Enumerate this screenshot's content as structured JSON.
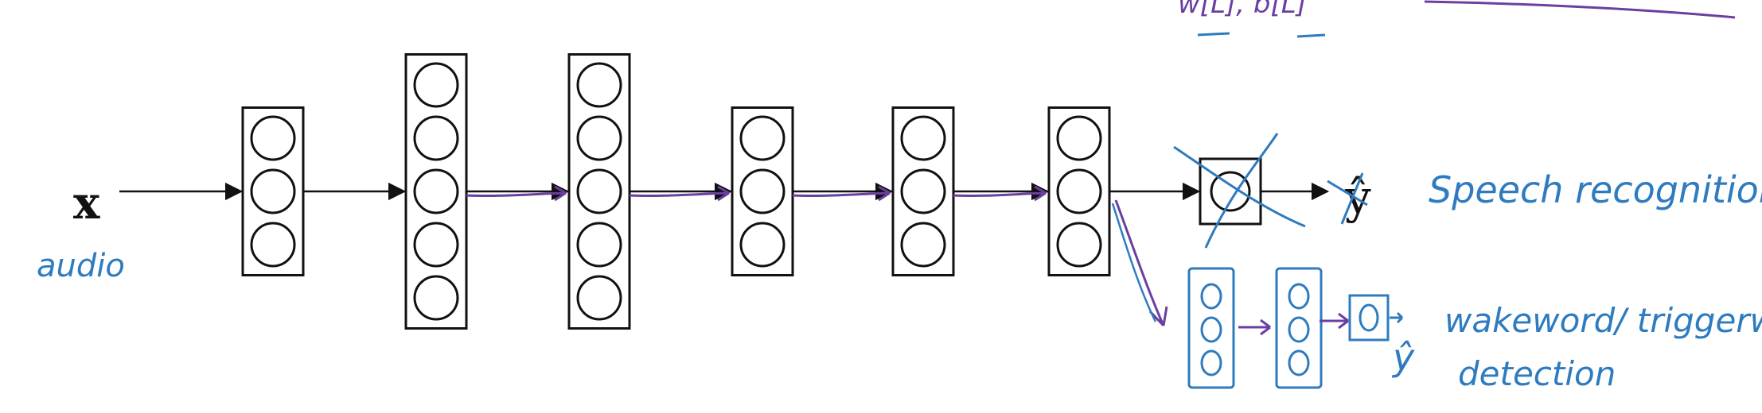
{
  "input": {
    "symbol": "x",
    "annotation": "audio"
  },
  "network": {
    "layer_units": [
      3,
      5,
      5,
      3,
      3,
      3
    ],
    "output_units": 1
  },
  "outputs": {
    "original_symbol": "ŷ",
    "original_task": "Speech recognition",
    "new_symbol": "ŷ",
    "new_task_line1": "wakeword/ triggerword",
    "new_task_line2": "detection",
    "new_layer_units": [
      3,
      3
    ],
    "new_output_units": 1
  },
  "top_note": {
    "text": "w[L], b[L]"
  },
  "colors": {
    "ink": "#111111",
    "blue_pen": "#2e7bbf",
    "purple_pen": "#6a3fa0"
  }
}
